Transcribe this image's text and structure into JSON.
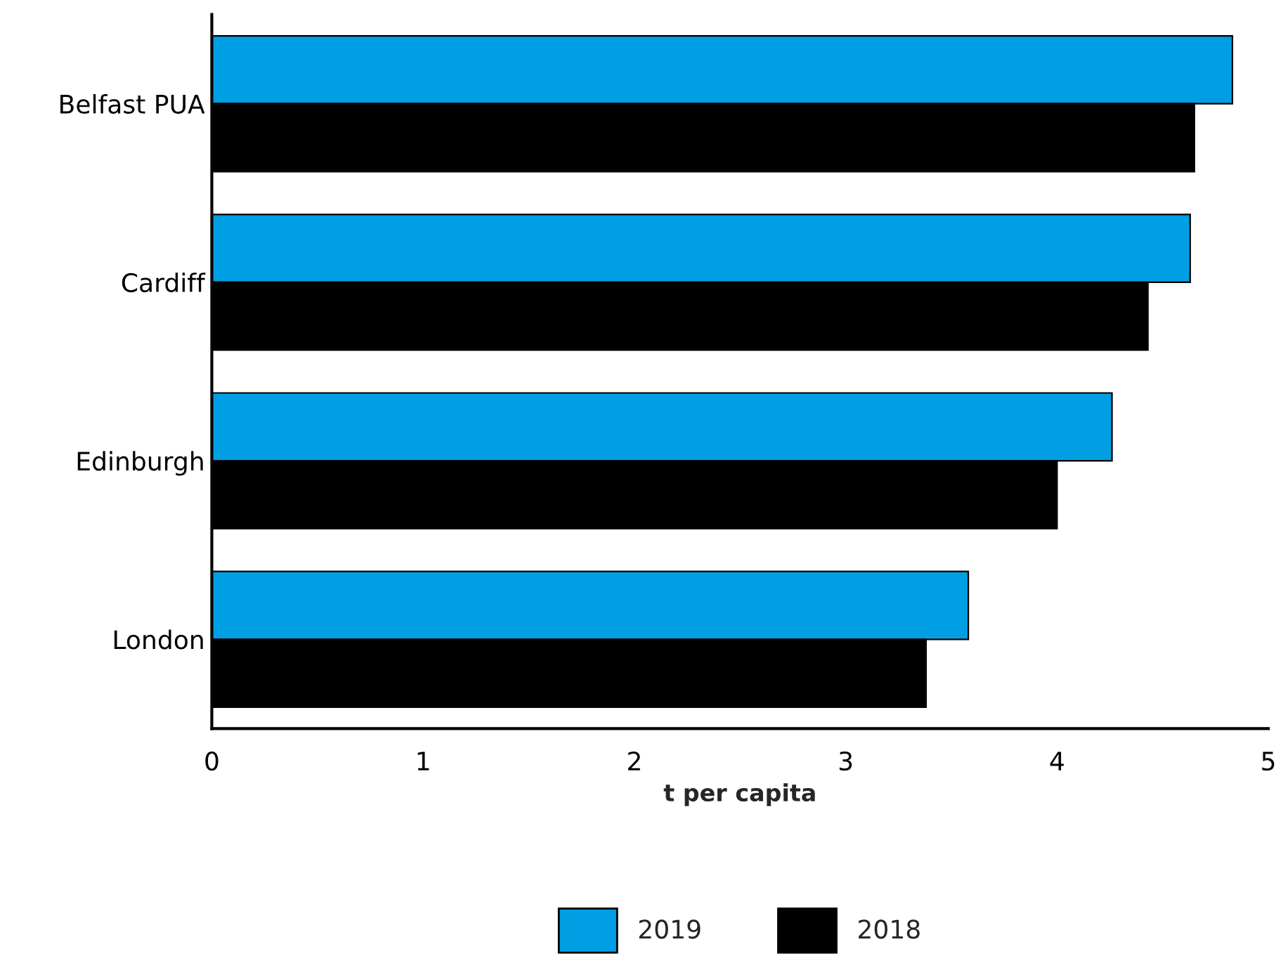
{
  "chart_data": {
    "type": "bar",
    "orientation": "horizontal",
    "xlabel": "t per capita",
    "categories": [
      "Belfast PUA",
      "Cardiff",
      "Edinburgh",
      "London"
    ],
    "series": [
      {
        "name": "2019",
        "color": "#009fe3",
        "values": [
          4.83,
          4.63,
          4.26,
          3.58
        ]
      },
      {
        "name": "2018",
        "color": "#000000",
        "values": [
          4.65,
          4.43,
          4.0,
          3.38
        ]
      }
    ],
    "xlim": [
      0,
      5
    ],
    "xticks": [
      0,
      1,
      2,
      3,
      4,
      5
    ],
    "grid": false,
    "legend": "bottom"
  }
}
